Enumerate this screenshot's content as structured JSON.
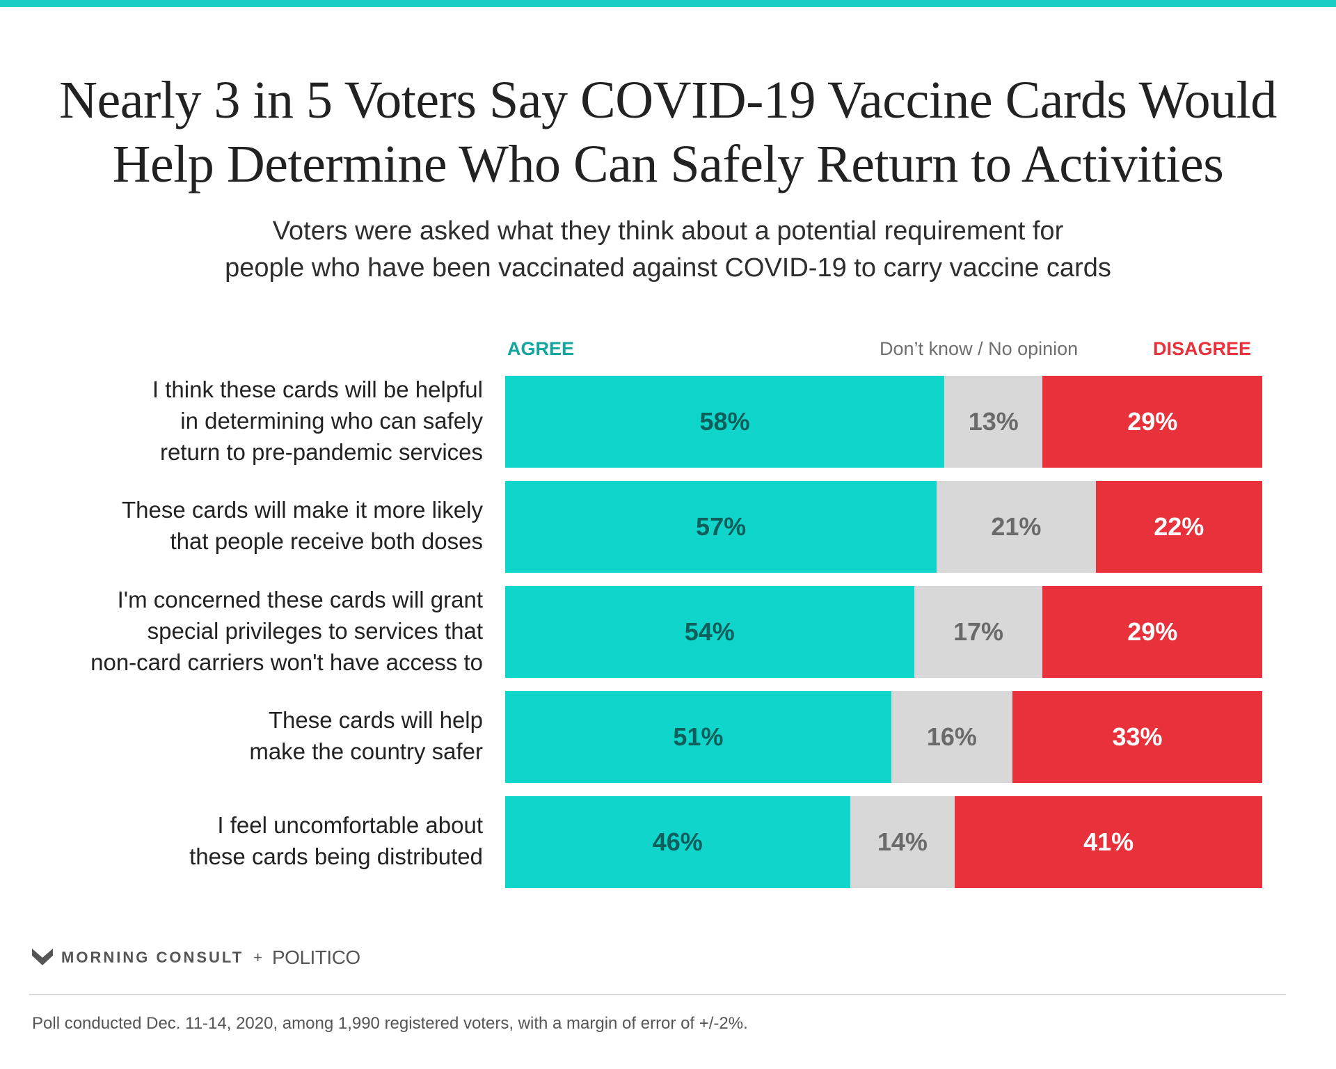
{
  "header": {
    "title_line1": "Nearly 3 in 5 Voters Say COVID-19 Vaccine Cards Would",
    "title_line2": "Help Determine Who Can Safely Return to Activities",
    "subtitle_line1": "Voters were asked what they think about a potential requirement for",
    "subtitle_line2": "people who have been vaccinated against COVID-19 to carry vaccine cards"
  },
  "legend": {
    "agree": "AGREE",
    "dont_know": "Don’t know / No opinion",
    "disagree": "DISAGREE"
  },
  "chart_data": {
    "type": "bar",
    "orientation": "horizontal",
    "stacked": true,
    "categories": [
      [
        "I think these cards will be helpful",
        "in determining who can safely",
        "return to pre-pandemic services"
      ],
      [
        "These cards will make it more likely",
        "that people receive both doses"
      ],
      [
        "I'm concerned these cards will grant",
        "special privileges to services that",
        "non-card carriers won't have access to"
      ],
      [
        "These cards will help",
        "make the country safer"
      ],
      [
        "I feel uncomfortable about",
        "these cards being distributed"
      ]
    ],
    "series": [
      {
        "name": "AGREE",
        "values": [
          58,
          57,
          54,
          51,
          46
        ],
        "labels": [
          "58%",
          "57%",
          "54%",
          "51%",
          "46%"
        ]
      },
      {
        "name": "Don’t know / No opinion",
        "values": [
          13,
          21,
          17,
          16,
          14
        ],
        "labels": [
          "13%",
          "21%",
          "17%",
          "16%",
          "14%"
        ]
      },
      {
        "name": "DISAGREE",
        "values": [
          29,
          22,
          29,
          33,
          41
        ],
        "labels": [
          "29%",
          "22%",
          "29%",
          "33%",
          "41%"
        ]
      }
    ],
    "xlim": [
      0,
      100
    ],
    "legend_position": "top",
    "grid": false
  },
  "colors": {
    "agree": "#10d5cb",
    "dont_know": "#d8d8d8",
    "disagree": "#e8313a",
    "accent": "#1ccdc6"
  },
  "footer": {
    "brand_1": "MORNING CONSULT",
    "brand_plus": "+",
    "brand_2": "POLITICO",
    "note": "Poll conducted Dec. 11-14, 2020, among 1,990 registered voters, with a margin of error of +/-2%."
  }
}
